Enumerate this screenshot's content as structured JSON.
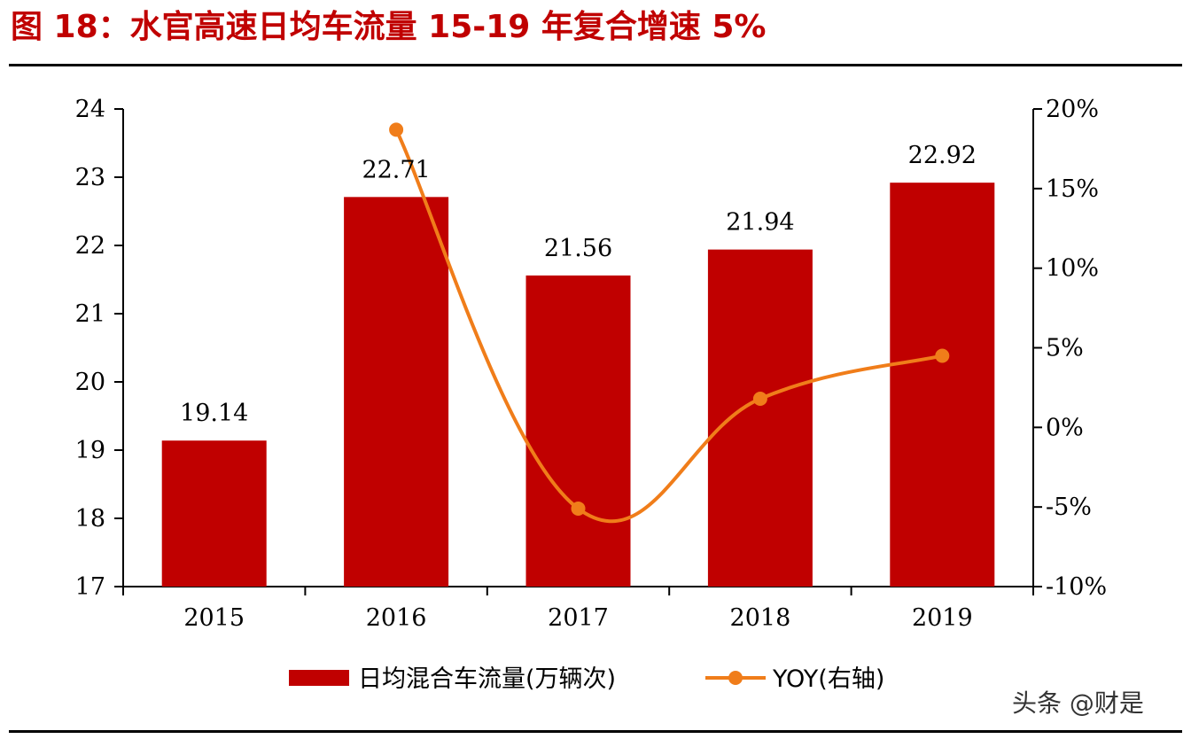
{
  "title": "图 18：水官高速日均车流量 15-19 年复合增速 5%",
  "watermark": "头条 @财是",
  "chart_data": {
    "type": "bar",
    "categories": [
      "2015",
      "2016",
      "2017",
      "2018",
      "2019"
    ],
    "series": [
      {
        "name": "日均混合车流量(万辆次)",
        "type": "bar",
        "axis": "left",
        "values": [
          19.14,
          22.71,
          21.56,
          21.94,
          22.92
        ],
        "color": "#c00000"
      },
      {
        "name": "YOY(右轴)",
        "type": "line",
        "axis": "right",
        "values": [
          null,
          18.7,
          -5.1,
          1.8,
          4.5
        ],
        "color": "#f07d1a"
      }
    ],
    "data_labels": [
      "19.14",
      "22.71",
      "21.56",
      "21.94",
      "22.92"
    ],
    "y_left": {
      "min": 17,
      "max": 24,
      "ticks": [
        "17",
        "18",
        "19",
        "20",
        "21",
        "22",
        "23",
        "24"
      ]
    },
    "y_right": {
      "min": -10,
      "max": 20,
      "ticks": [
        "-10%",
        "-5%",
        "0%",
        "5%",
        "10%",
        "15%",
        "20%"
      ]
    },
    "legend_position": "bottom",
    "grid": false
  }
}
